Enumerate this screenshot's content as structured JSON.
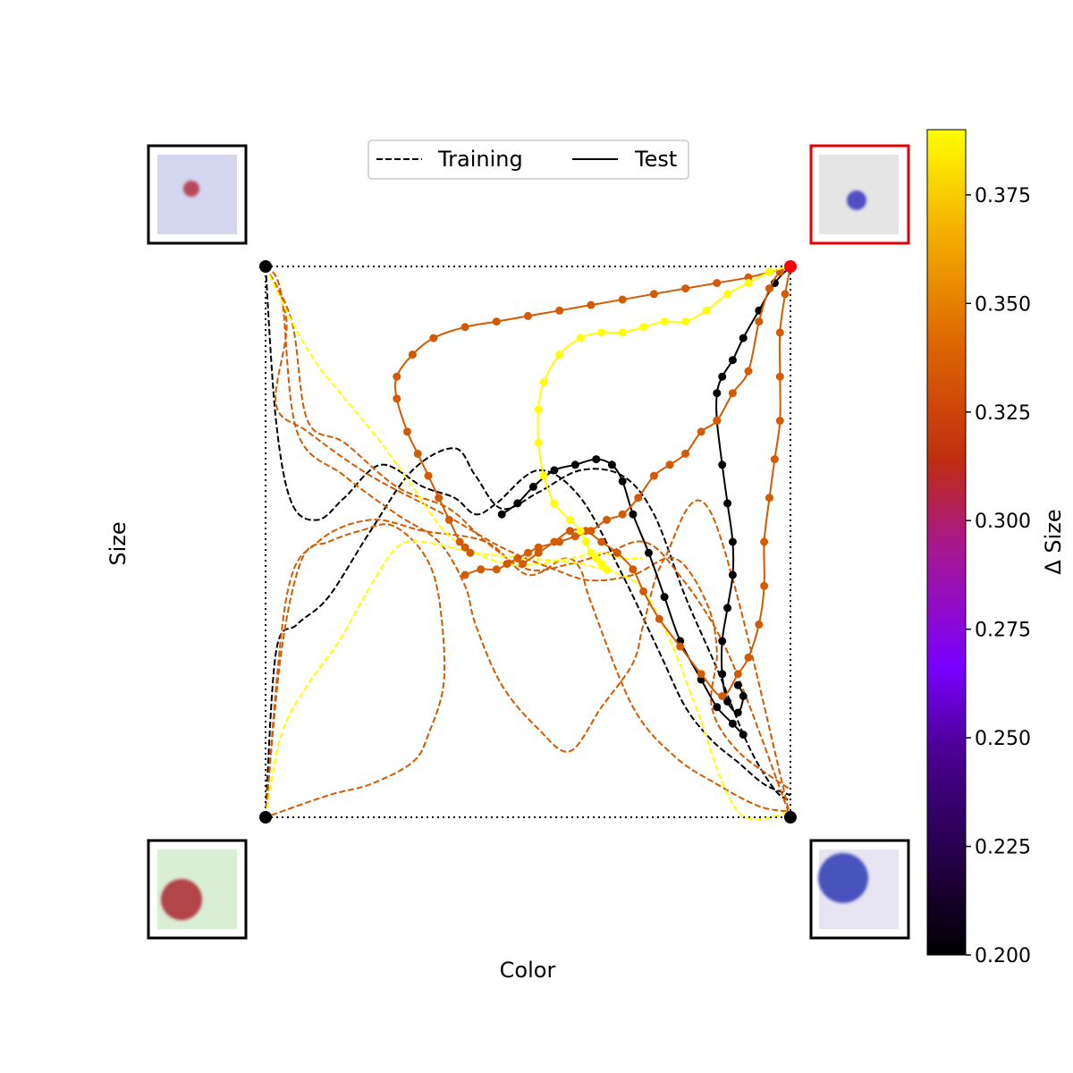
{
  "chart_data": {
    "type": "line",
    "title": "",
    "xlabel": "Color",
    "ylabel": "Size",
    "xlim": [
      0,
      1
    ],
    "ylim": [
      0,
      1
    ],
    "grid": false,
    "legend": {
      "placement": "top-center",
      "entries": [
        {
          "label": "Training",
          "style": "dashed"
        },
        {
          "label": "Test",
          "style": "solid"
        }
      ]
    },
    "colorbar": {
      "label": "Δ Size",
      "colormap": "gnuplot",
      "min": 0.2,
      "max": 0.39,
      "ticks": [
        "0.200",
        "0.225",
        "0.250",
        "0.275",
        "0.300",
        "0.325",
        "0.350",
        "0.375"
      ]
    },
    "corners": [
      {
        "name": "top-left",
        "x": 0,
        "y": 1,
        "image": "small red dot on lavender background",
        "frame": "black",
        "marker": "#000000"
      },
      {
        "name": "top-right",
        "x": 1,
        "y": 1,
        "image": "small blue dot on gray background",
        "frame": "red",
        "marker": "#ff0000"
      },
      {
        "name": "bottom-left",
        "x": 0,
        "y": 0,
        "image": "large red dot on light green background",
        "frame": "black",
        "marker": "#000000"
      },
      {
        "name": "bottom-right",
        "x": 1,
        "y": 0,
        "image": "large blue dot on light lavender background",
        "frame": "black",
        "marker": "#000000"
      }
    ],
    "series": [
      {
        "group": "training",
        "delta_size": 0.2,
        "color": "#000000",
        "x": [
          0.0,
          0.02,
          0.05,
          0.1,
          0.15,
          0.22,
          0.3,
          0.36,
          0.4,
          0.44,
          0.52,
          0.6,
          0.68,
          0.75,
          0.8,
          0.85,
          0.9,
          0.95,
          1.0
        ],
        "y": [
          1.0,
          0.72,
          0.57,
          0.54,
          0.58,
          0.64,
          0.6,
          0.58,
          0.55,
          0.57,
          0.63,
          0.58,
          0.44,
          0.3,
          0.2,
          0.14,
          0.1,
          0.06,
          0.04
        ]
      },
      {
        "group": "training",
        "delta_size": 0.2,
        "color": "#000000",
        "x": [
          0.0,
          0.02,
          0.06,
          0.12,
          0.2,
          0.28,
          0.36,
          0.4,
          0.45,
          0.52,
          0.6,
          0.68,
          0.74,
          0.8,
          0.86,
          0.92,
          0.97,
          1.0
        ],
        "y": [
          0.0,
          0.3,
          0.35,
          0.4,
          0.52,
          0.63,
          0.67,
          0.62,
          0.56,
          0.59,
          0.63,
          0.62,
          0.55,
          0.4,
          0.27,
          0.13,
          0.05,
          0.03
        ]
      },
      {
        "group": "training",
        "delta_size": 0.34,
        "color": "#d45a00",
        "x": [
          0.0,
          0.04,
          0.02,
          0.08,
          0.2,
          0.34,
          0.45,
          0.55,
          0.62,
          0.7,
          0.78,
          0.84,
          0.86,
          0.85,
          0.9,
          1.0
        ],
        "y": [
          1.0,
          0.9,
          0.75,
          0.7,
          0.62,
          0.55,
          0.49,
          0.45,
          0.43,
          0.44,
          0.47,
          0.39,
          0.3,
          0.2,
          0.12,
          0.05
        ]
      },
      {
        "group": "training",
        "delta_size": 0.34,
        "color": "#d45a00",
        "x": [
          0.0,
          0.05,
          0.08,
          0.15,
          0.25,
          0.35,
          0.42,
          0.5,
          0.58,
          0.65,
          0.72,
          0.78,
          0.88,
          1.0
        ],
        "y": [
          1.0,
          0.9,
          0.72,
          0.68,
          0.6,
          0.56,
          0.5,
          0.45,
          0.46,
          0.48,
          0.5,
          0.45,
          0.3,
          0.0
        ]
      },
      {
        "group": "training",
        "delta_size": 0.34,
        "color": "#d45a00",
        "x": [
          0.0,
          0.03,
          0.06,
          0.15,
          0.25,
          0.33,
          0.38,
          0.4,
          0.45,
          0.52,
          0.58,
          0.64,
          0.7,
          0.72,
          0.76,
          0.85,
          1.0
        ],
        "y": [
          1.0,
          0.95,
          0.7,
          0.62,
          0.55,
          0.5,
          0.42,
          0.35,
          0.24,
          0.16,
          0.12,
          0.2,
          0.28,
          0.35,
          0.47,
          0.55,
          0.0
        ]
      },
      {
        "group": "training",
        "delta_size": 0.34,
        "color": "#d45a00",
        "x": [
          0.0,
          0.03,
          0.07,
          0.12,
          0.18,
          0.24,
          0.3,
          0.33,
          0.34,
          0.31,
          0.28,
          0.2,
          0.12,
          0.0
        ],
        "y": [
          0.0,
          0.3,
          0.47,
          0.5,
          0.52,
          0.53,
          0.48,
          0.4,
          0.25,
          0.15,
          0.1,
          0.06,
          0.04,
          0.0
        ]
      },
      {
        "group": "training",
        "delta_size": 0.34,
        "color": "#d45a00",
        "x": [
          0.0,
          0.04,
          0.1,
          0.2,
          0.3,
          0.42,
          0.5,
          0.57,
          0.6,
          0.62,
          0.7,
          0.78,
          0.86,
          0.94,
          1.0
        ],
        "y": [
          0.0,
          0.4,
          0.5,
          0.54,
          0.52,
          0.5,
          0.44,
          0.47,
          0.45,
          0.39,
          0.2,
          0.11,
          0.06,
          0.02,
          0.01
        ]
      },
      {
        "group": "training",
        "delta_size": 0.39,
        "color": "#ffff00",
        "x": [
          0.0,
          0.05,
          0.1,
          0.16,
          0.22,
          0.28,
          0.34,
          0.4,
          0.46,
          0.52,
          0.58,
          0.64,
          0.68,
          0.72
        ],
        "y": [
          1.0,
          0.9,
          0.82,
          0.75,
          0.68,
          0.6,
          0.52,
          0.48,
          0.46,
          0.46,
          0.47,
          0.48,
          0.47,
          0.47
        ]
      },
      {
        "group": "training",
        "delta_size": 0.39,
        "color": "#ffff00",
        "x": [
          0.0,
          0.03,
          0.08,
          0.14,
          0.2,
          0.25,
          0.3,
          0.4,
          0.5,
          0.6,
          0.7,
          0.74,
          0.78,
          0.82,
          0.9,
          1.0
        ],
        "y": [
          0.0,
          0.15,
          0.24,
          0.32,
          0.42,
          0.49,
          0.5,
          0.48,
          0.47,
          0.46,
          0.43,
          0.38,
          0.3,
          0.2,
          0.01,
          0.01
        ]
      },
      {
        "group": "test",
        "delta_size": 0.2,
        "color": "#000000",
        "x": [
          1.0,
          0.97,
          0.94,
          0.91,
          0.89,
          0.87,
          0.86,
          0.86,
          0.87,
          0.88,
          0.89,
          0.89,
          0.88,
          0.87,
          0.87,
          0.88,
          0.9,
          0.91,
          0.9
        ],
        "y": [
          1.0,
          0.97,
          0.92,
          0.87,
          0.83,
          0.8,
          0.77,
          0.72,
          0.64,
          0.57,
          0.5,
          0.44,
          0.38,
          0.32,
          0.26,
          0.21,
          0.19,
          0.22,
          0.24
        ]
      },
      {
        "group": "test",
        "delta_size": 0.2,
        "color": "#000000",
        "x": [
          0.45,
          0.48,
          0.51,
          0.55,
          0.59,
          0.63,
          0.66,
          0.68,
          0.7,
          0.73,
          0.76,
          0.79,
          0.83,
          0.86,
          0.89,
          0.91
        ],
        "y": [
          0.55,
          0.57,
          0.6,
          0.63,
          0.64,
          0.65,
          0.64,
          0.61,
          0.55,
          0.48,
          0.4,
          0.32,
          0.25,
          0.2,
          0.17,
          0.15
        ]
      },
      {
        "group": "test",
        "delta_size": 0.345,
        "color": "#d45a00",
        "x": [
          1.0,
          0.96,
          0.92,
          0.86,
          0.8,
          0.74,
          0.68,
          0.62,
          0.56,
          0.5,
          0.44,
          0.38,
          0.32,
          0.28,
          0.25,
          0.25,
          0.27,
          0.29,
          0.31,
          0.33,
          0.35,
          0.37,
          0.38,
          0.39
        ],
        "y": [
          1.0,
          0.99,
          0.98,
          0.97,
          0.96,
          0.95,
          0.94,
          0.93,
          0.92,
          0.91,
          0.9,
          0.89,
          0.87,
          0.84,
          0.8,
          0.76,
          0.7,
          0.66,
          0.62,
          0.58,
          0.54,
          0.5,
          0.49,
          0.48
        ]
      },
      {
        "group": "test",
        "delta_size": 0.345,
        "color": "#d45a00",
        "x": [
          1.0,
          0.98,
          0.96,
          0.94,
          0.92,
          0.89,
          0.86,
          0.83,
          0.8,
          0.77,
          0.74,
          0.71,
          0.68,
          0.65,
          0.62,
          0.59,
          0.56,
          0.52,
          0.5,
          0.48,
          0.46,
          0.44,
          0.41,
          0.38
        ],
        "y": [
          1.0,
          0.99,
          0.96,
          0.9,
          0.81,
          0.77,
          0.72,
          0.7,
          0.66,
          0.64,
          0.62,
          0.58,
          0.55,
          0.54,
          0.52,
          0.51,
          0.5,
          0.49,
          0.48,
          0.47,
          0.46,
          0.45,
          0.45,
          0.44
        ]
      },
      {
        "group": "test",
        "delta_size": 0.345,
        "color": "#d45a00",
        "x": [
          1.0,
          0.99,
          0.98,
          0.98,
          0.98,
          0.97,
          0.96,
          0.95,
          0.95,
          0.94,
          0.92,
          0.9,
          0.87,
          0.83,
          0.79,
          0.75,
          0.72,
          0.7,
          0.67,
          0.64,
          0.61,
          0.58,
          0.55,
          0.52,
          0.49
        ],
        "y": [
          1.0,
          0.95,
          0.88,
          0.8,
          0.72,
          0.65,
          0.58,
          0.5,
          0.42,
          0.35,
          0.29,
          0.26,
          0.22,
          0.26,
          0.31,
          0.36,
          0.41,
          0.45,
          0.48,
          0.5,
          0.52,
          0.52,
          0.5,
          0.48,
          0.46
        ]
      },
      {
        "group": "test",
        "delta_size": 0.39,
        "color": "#ffff00",
        "x": [
          1.0,
          0.96,
          0.92,
          0.88,
          0.84,
          0.8,
          0.76,
          0.72,
          0.68,
          0.64,
          0.6,
          0.56,
          0.53,
          0.52,
          0.52,
          0.53,
          0.55,
          0.58,
          0.6,
          0.61,
          0.62,
          0.63,
          0.64,
          0.65
        ],
        "y": [
          1.0,
          0.99,
          0.97,
          0.95,
          0.92,
          0.9,
          0.9,
          0.89,
          0.88,
          0.88,
          0.87,
          0.84,
          0.79,
          0.74,
          0.68,
          0.62,
          0.57,
          0.54,
          0.52,
          0.5,
          0.48,
          0.47,
          0.46,
          0.45
        ]
      }
    ]
  }
}
